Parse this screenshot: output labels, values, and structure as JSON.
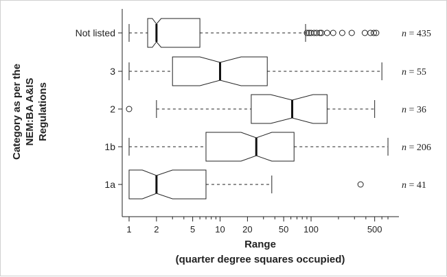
{
  "chart_data": {
    "type": "boxplot",
    "orientation": "horizontal",
    "xscale": "log",
    "xlim": [
      1,
      750
    ],
    "xticks": [
      "1",
      "2",
      "5",
      "10",
      "20",
      "50",
      "100",
      "500"
    ],
    "xlabel_line1": "Range",
    "xlabel_line2": "(quarter degree squares occupied)",
    "ylabel_lines": [
      "Category as per the",
      "NEM:BA A&IS",
      "Regulations"
    ],
    "notched": true,
    "n_prefix": "n",
    "categories": [
      {
        "label": "Not listed",
        "n_text": "= 435",
        "min": 1,
        "q1": 1.6,
        "median": 2,
        "q3": 6,
        "max": 87,
        "notch": [
          1.8,
          2.25
        ],
        "outliers": [
          90,
          95,
          100,
          108,
          115,
          125,
          130,
          150,
          175,
          220,
          280,
          390,
          450,
          490,
          520
        ]
      },
      {
        "label": "3",
        "n_text": "= 55",
        "min": 1,
        "q1": 3,
        "median": 10,
        "q3": 33,
        "max": 600,
        "notch": [
          6,
          17
        ],
        "outliers": []
      },
      {
        "label": "2",
        "n_text": "= 36",
        "min": 2,
        "q1": 22,
        "median": 62,
        "q3": 150,
        "max": 500,
        "notch": [
          36,
          105
        ],
        "outliers": [
          1
        ]
      },
      {
        "label": "1b",
        "n_text": "= 206",
        "min": 1,
        "q1": 7,
        "median": 25,
        "q3": 65,
        "max": 700,
        "notch": [
          17,
          37
        ],
        "outliers": []
      },
      {
        "label": "1a",
        "n_text": "= 41",
        "min": 1,
        "q1": 1,
        "median": 2,
        "q3": 7,
        "max": 37,
        "notch": [
          1.4,
          3
        ],
        "outliers": [
          350
        ]
      }
    ]
  }
}
